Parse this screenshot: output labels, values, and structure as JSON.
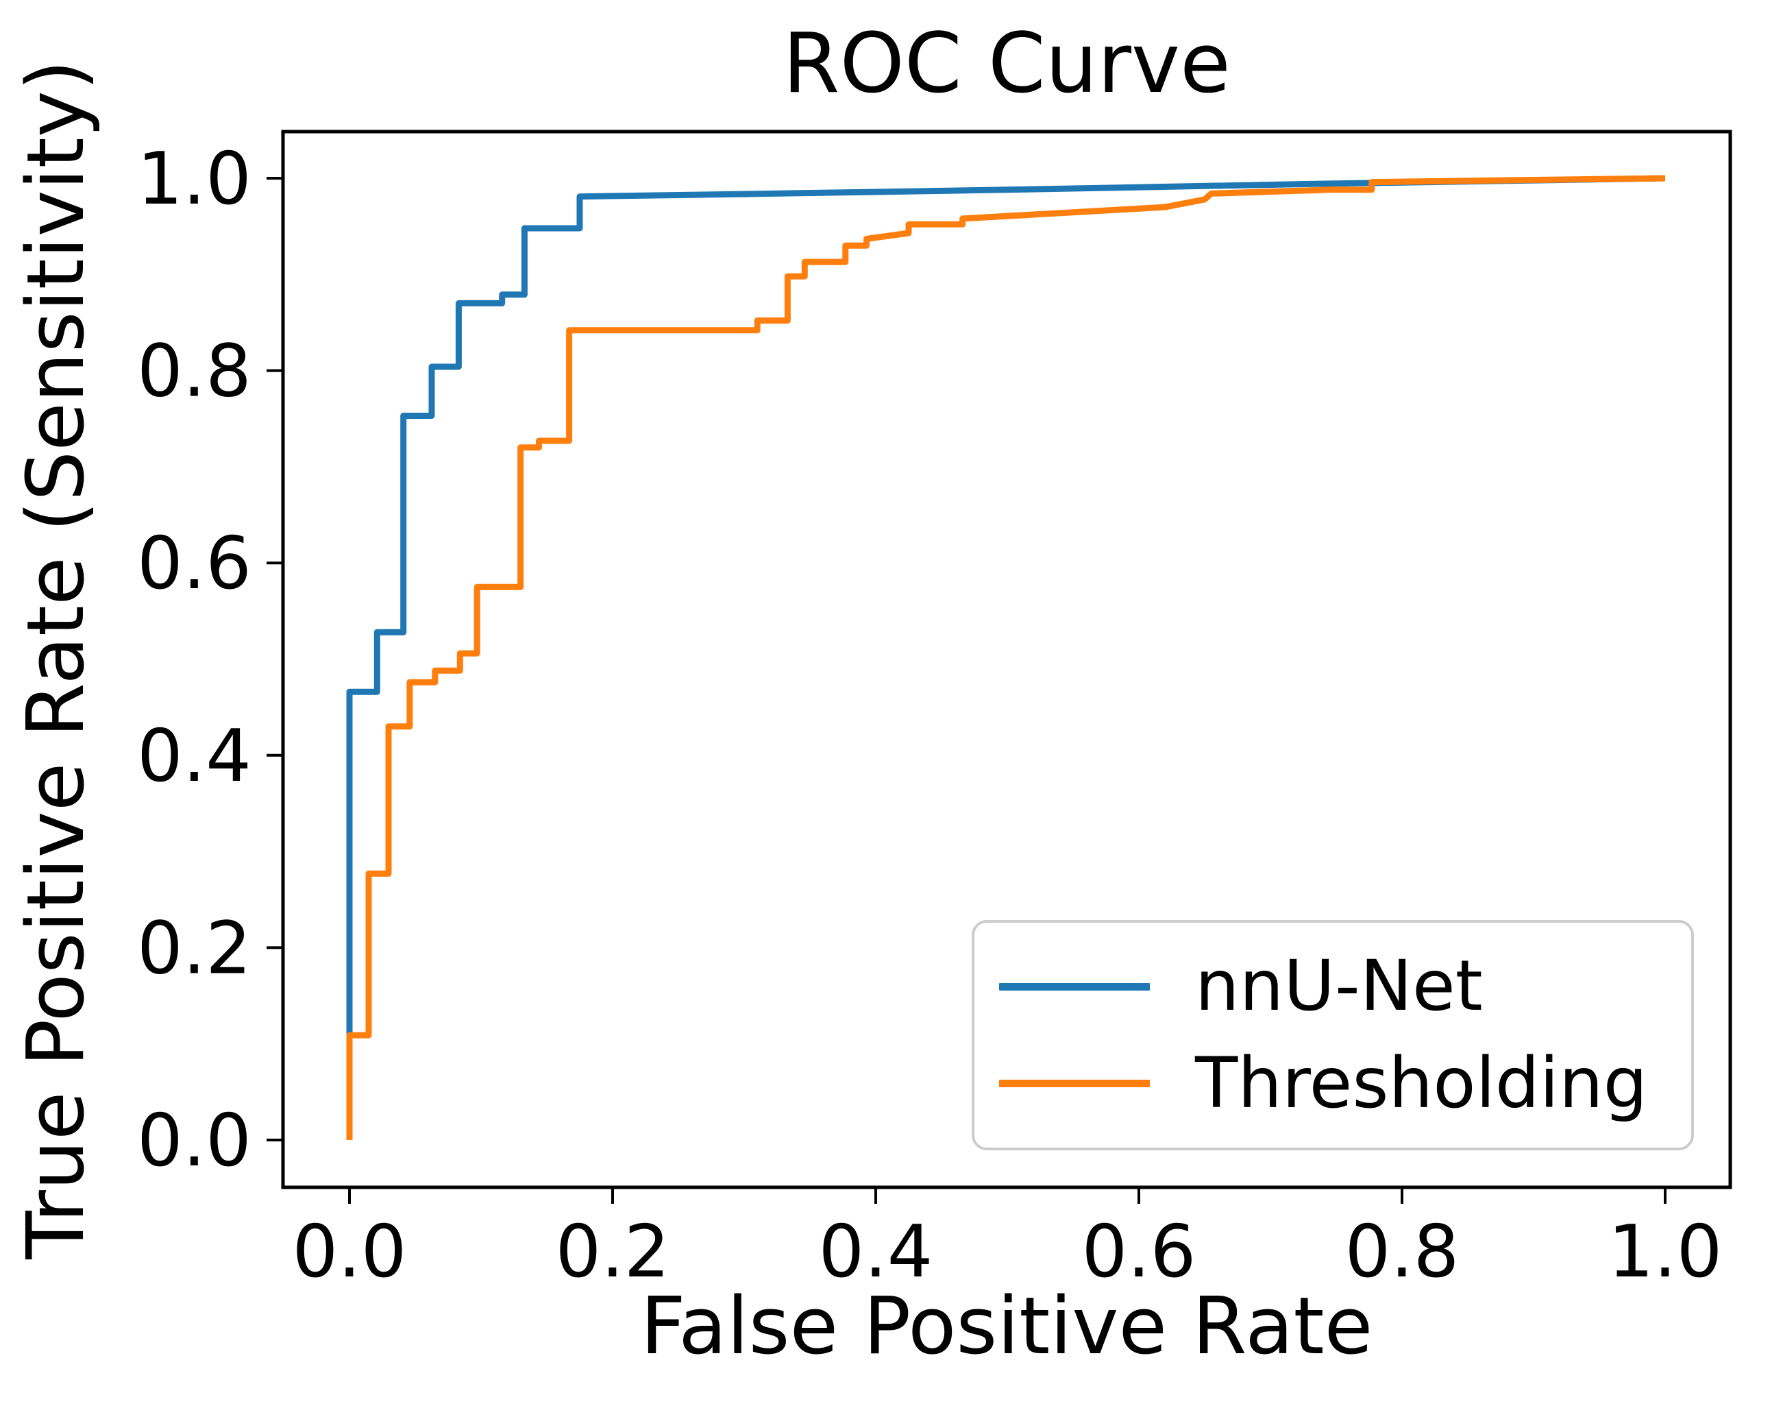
{
  "title": "ROC Curve",
  "axes": {
    "xlabel": "False Positive Rate",
    "ylabel": "True Positive Rate (Sensitivity)",
    "x_ticks": [
      "0.0",
      "0.2",
      "0.4",
      "0.6",
      "0.8",
      "1.0"
    ],
    "y_ticks": [
      "0.0",
      "0.2",
      "0.4",
      "0.6",
      "0.8",
      "1.0"
    ]
  },
  "legend": {
    "entries": [
      {
        "label": "nnU-Net",
        "color": "#1f77b4"
      },
      {
        "label": "Thresholding",
        "color": "#ff7f0e"
      }
    ]
  },
  "chart_data": {
    "type": "line",
    "title": "ROC Curve",
    "xlabel": "False Positive Rate",
    "ylabel": "True Positive Rate (Sensitivity)",
    "xlim": [
      -0.05,
      1.05
    ],
    "ylim": [
      -0.05,
      1.05
    ],
    "grid": false,
    "legend_position": "lower right",
    "series": [
      {
        "name": "nnU-Net",
        "color": "#1f77b4",
        "points": [
          [
            0.0,
            0.0
          ],
          [
            0.0,
            0.466
          ],
          [
            0.021,
            0.466
          ],
          [
            0.021,
            0.528
          ],
          [
            0.041,
            0.528
          ],
          [
            0.041,
            0.753
          ],
          [
            0.0625,
            0.753
          ],
          [
            0.0625,
            0.804
          ],
          [
            0.083,
            0.804
          ],
          [
            0.083,
            0.87
          ],
          [
            0.116,
            0.87
          ],
          [
            0.116,
            0.879
          ],
          [
            0.133,
            0.879
          ],
          [
            0.133,
            0.948
          ],
          [
            0.175,
            0.948
          ],
          [
            0.175,
            0.981
          ],
          [
            0.3,
            0.9835
          ],
          [
            0.5,
            0.988
          ],
          [
            0.73,
            0.994
          ],
          [
            1.0,
            1.0
          ]
        ]
      },
      {
        "name": "Thresholding",
        "color": "#ff7f0e",
        "points": [
          [
            0.0,
            0.0
          ],
          [
            0.0,
            0.109
          ],
          [
            0.0146,
            0.109
          ],
          [
            0.0146,
            0.277
          ],
          [
            0.0297,
            0.277
          ],
          [
            0.0297,
            0.43
          ],
          [
            0.0458,
            0.43
          ],
          [
            0.0458,
            0.476
          ],
          [
            0.065,
            0.476
          ],
          [
            0.065,
            0.488
          ],
          [
            0.084,
            0.488
          ],
          [
            0.084,
            0.506
          ],
          [
            0.097,
            0.506
          ],
          [
            0.097,
            0.575
          ],
          [
            0.13,
            0.575
          ],
          [
            0.13,
            0.72
          ],
          [
            0.144,
            0.72
          ],
          [
            0.144,
            0.727
          ],
          [
            0.167,
            0.727
          ],
          [
            0.167,
            0.842
          ],
          [
            0.31,
            0.842
          ],
          [
            0.31,
            0.852
          ],
          [
            0.333,
            0.852
          ],
          [
            0.333,
            0.898
          ],
          [
            0.346,
            0.898
          ],
          [
            0.346,
            0.913
          ],
          [
            0.377,
            0.913
          ],
          [
            0.377,
            0.93
          ],
          [
            0.393,
            0.93
          ],
          [
            0.393,
            0.937
          ],
          [
            0.425,
            0.943
          ],
          [
            0.425,
            0.952
          ],
          [
            0.466,
            0.952
          ],
          [
            0.466,
            0.958
          ],
          [
            0.62,
            0.97
          ],
          [
            0.65,
            0.978
          ],
          [
            0.655,
            0.984
          ],
          [
            0.745,
            0.988
          ],
          [
            0.777,
            0.988
          ],
          [
            0.777,
            0.996
          ],
          [
            1.0,
            1.0
          ]
        ]
      }
    ]
  }
}
